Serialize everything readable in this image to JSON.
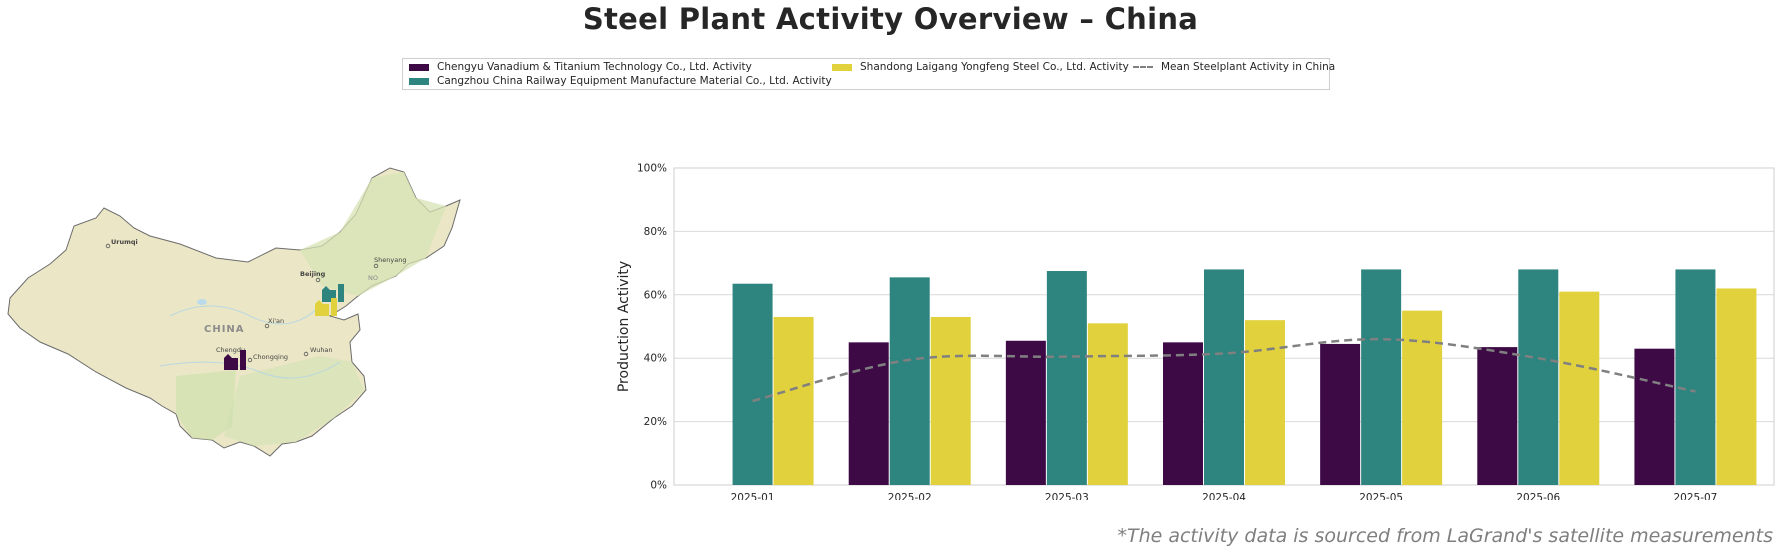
{
  "title": "Steel Plant Activity Overview – China",
  "legend": {
    "items": [
      {
        "label": "Chengyu Vanadium & Titanium Technology Co., Ltd. Activity",
        "color": "#3d0a46",
        "kind": "bar"
      },
      {
        "label": "Cangzhou China Railway Equipment Manufacture Material Co., Ltd. Activity",
        "color": "#2e847f",
        "kind": "bar"
      },
      {
        "label": "Shandong Laigang Yongfeng Steel Co., Ltd. Activity",
        "color": "#e1d13d",
        "kind": "bar"
      },
      {
        "label": "Mean Steelplant Activity in China",
        "color": "#808080",
        "kind": "dashed-line"
      }
    ]
  },
  "map": {
    "country_label": "CHINA",
    "cities": [
      "Urumqi",
      "Beijing",
      "Shenyang",
      "Xi'an",
      "Chengdu",
      "Chongqing",
      "Wuhan",
      "NO"
    ],
    "plant_icon_colors": [
      "#3d0a46",
      "#2e847f",
      "#e1d13d"
    ]
  },
  "chart_data": {
    "type": "bar",
    "categories": [
      "2025-01",
      "2025-02",
      "2025-03",
      "2025-04",
      "2025-05",
      "2025-06",
      "2025-07"
    ],
    "series": [
      {
        "name": "Chengyu Vanadium & Titanium Technology Co., Ltd. Activity",
        "color": "#3d0a46",
        "values": [
          null,
          45,
          45.5,
          45,
          44.5,
          43.5,
          43
        ]
      },
      {
        "name": "Cangzhou China Railway Equipment Manufacture Material Co., Ltd. Activity",
        "color": "#2e847f",
        "values": [
          63.5,
          65.5,
          67.5,
          68,
          68,
          68,
          68
        ]
      },
      {
        "name": "Shandong Laigang Yongfeng Steel Co., Ltd. Activity",
        "color": "#e1d13d",
        "values": [
          53,
          53,
          51,
          52,
          55,
          61,
          62
        ]
      }
    ],
    "mean_line": {
      "name": "Mean Steelplant Activity in China",
      "color": "#808080",
      "values": [
        26.5,
        39.5,
        40.5,
        41.5,
        46,
        40,
        29.5
      ]
    },
    "ylabel": "Production Activity",
    "xlabel": "",
    "ylim": [
      0,
      100
    ],
    "yticks": [
      "0%",
      "20%",
      "40%",
      "60%",
      "80%",
      "100%"
    ],
    "grid": "horizontal",
    "legend_position": "top-center"
  },
  "footnote": "*The activity data is sourced from LaGrand's satellite measurements"
}
